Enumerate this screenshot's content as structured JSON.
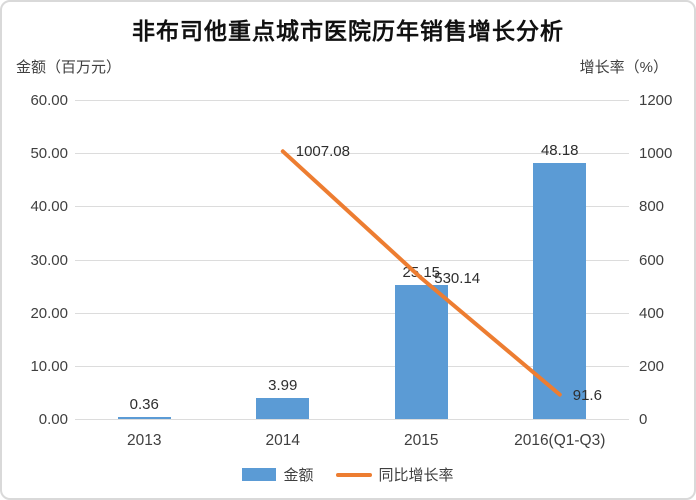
{
  "colors": {
    "bar": "#5b9bd5",
    "line": "#ed7d31",
    "grid": "#dcdcdc",
    "text": "#3f3f3f",
    "title": "#111111",
    "card_border": "#d9d9d9"
  },
  "chart_data": {
    "type": "bar+line combo (dual axis)",
    "title": "非布司他重点城市医院历年销售增长分析",
    "categories": [
      "2013",
      "2014",
      "2015",
      "2016(Q1-Q3)"
    ],
    "series": [
      {
        "name": "金额",
        "type": "bar",
        "axis": "left",
        "color": "#5b9bd5",
        "values": [
          0.36,
          3.99,
          25.15,
          48.18
        ],
        "data_labels": [
          "0.36",
          "3.99",
          "25.15",
          "48.18"
        ]
      },
      {
        "name": "同比增长率",
        "type": "line",
        "axis": "right",
        "color": "#ed7d31",
        "values": [
          null,
          1007.08,
          530.14,
          91.6
        ],
        "data_labels": [
          null,
          "1007.08",
          "530.14",
          "91.6"
        ]
      }
    ],
    "left_axis": {
      "title": "金额（百万元）",
      "min": 0,
      "max": 60,
      "tick_labels": [
        "60.00",
        "50.00",
        "40.00",
        "30.00",
        "20.00",
        "10.00",
        "0.00"
      ]
    },
    "right_axis": {
      "title": "增长率（%）",
      "min": 0,
      "max": 1200,
      "tick_labels": [
        "1200",
        "1000",
        "800",
        "600",
        "400",
        "200",
        "0"
      ]
    },
    "grid": true,
    "legend": {
      "position": "bottom",
      "items": [
        "金额",
        "同比增长率"
      ]
    }
  }
}
